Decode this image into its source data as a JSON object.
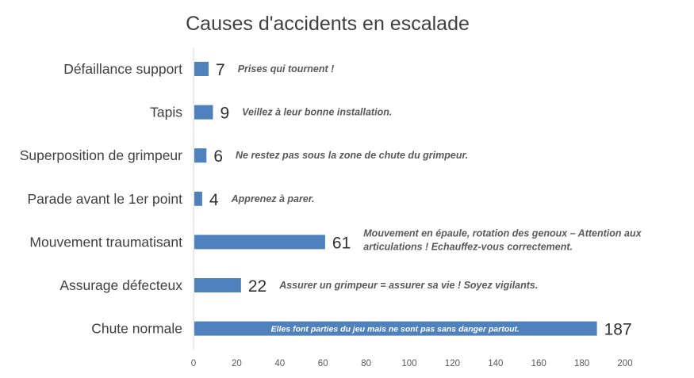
{
  "chart_data": {
    "type": "bar",
    "orientation": "horizontal",
    "title": "Causes d'accidents en escalade",
    "categories": [
      "Défaillance support",
      "Tapis",
      "Superposition de grimpeur",
      "Parade avant le 1er point",
      "Mouvement traumatisant",
      "Assurage défecteux",
      "Chute normale"
    ],
    "values": [
      7,
      9,
      6,
      4,
      61,
      22,
      187
    ],
    "value_labels": [
      "7",
      "9",
      "6",
      "4",
      "61",
      "22",
      "187"
    ],
    "annotations": [
      [
        "Prises qui tournent !"
      ],
      [
        "Veillez à leur bonne installation."
      ],
      [
        "Ne restez pas sous la zone de chute du grimpeur."
      ],
      [
        "Apprenez à parer."
      ],
      [
        "Mouvement en épaule, rotation des genoux – Attention aux",
        "articulations ! Echauffez-vous correctement."
      ],
      [
        "Assurer un grimpeur = assurer sa vie ! Soyez vigilants."
      ],
      [
        "Elles font parties du jeu mais ne sont pas sans danger partout."
      ]
    ],
    "inside_annotation_index": 6,
    "xlim": [
      0,
      200
    ],
    "x_ticks": [
      "0",
      "20",
      "40",
      "60",
      "80",
      "100",
      "120",
      "140",
      "160",
      "180",
      "200"
    ],
    "grid": false,
    "legend": "none",
    "bar_color": "#4f81bd"
  }
}
